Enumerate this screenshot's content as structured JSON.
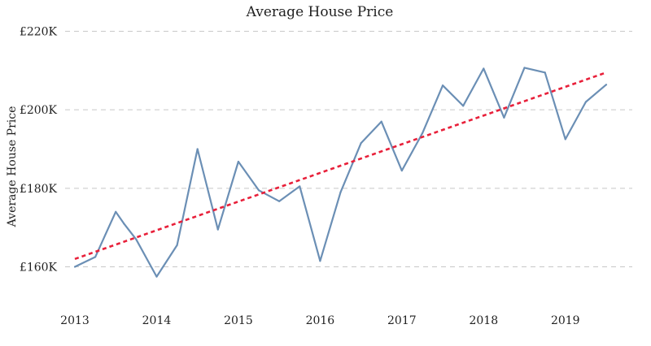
{
  "chart_data": {
    "type": "line",
    "title": "Average House Price",
    "xlabel": "",
    "ylabel": "Average House Price",
    "x_ticks": [
      {
        "value": 2013,
        "label": "2013"
      },
      {
        "value": 2014,
        "label": "2014"
      },
      {
        "value": 2015,
        "label": "2015"
      },
      {
        "value": 2016,
        "label": "2016"
      },
      {
        "value": 2017,
        "label": "2017"
      },
      {
        "value": 2018,
        "label": "2018"
      },
      {
        "value": 2019,
        "label": "2019"
      }
    ],
    "y_ticks": [
      {
        "value": 160000,
        "label": "£160K"
      },
      {
        "value": 180000,
        "label": "£180K"
      },
      {
        "value": 200000,
        "label": "£200K"
      },
      {
        "value": 220000,
        "label": "£220K"
      }
    ],
    "xlim": [
      2012.9,
      2019.6
    ],
    "ylim": [
      152000,
      221000
    ],
    "grid": "horizontal dashed",
    "colors": {
      "series": "#6b8fb5",
      "trend": "#e8203a",
      "grid": "#c8c8c8"
    },
    "series": [
      {
        "values": [
          [
            2013.0,
            160000
          ],
          [
            2013.25,
            162500
          ],
          [
            2013.5,
            174000
          ],
          [
            2013.6,
            171000
          ],
          [
            2013.75,
            167000
          ],
          [
            2014.0,
            157500
          ],
          [
            2014.25,
            165500
          ],
          [
            2014.5,
            190000
          ],
          [
            2014.75,
            169500
          ],
          [
            2015.0,
            186800
          ],
          [
            2015.25,
            179500
          ],
          [
            2015.5,
            176700
          ],
          [
            2015.75,
            180500
          ],
          [
            2016.0,
            161500
          ],
          [
            2016.25,
            179000
          ],
          [
            2016.5,
            191500
          ],
          [
            2016.75,
            197000
          ],
          [
            2017.0,
            184500
          ],
          [
            2017.25,
            194000
          ],
          [
            2017.5,
            206200
          ],
          [
            2017.75,
            201000
          ],
          [
            2018.0,
            210500
          ],
          [
            2018.25,
            198000
          ],
          [
            2018.5,
            210700
          ],
          [
            2018.75,
            209500
          ],
          [
            2019.0,
            192500
          ],
          [
            2019.25,
            202000
          ],
          [
            2019.5,
            206400
          ]
        ]
      }
    ],
    "trendline": {
      "values": [
        [
          2013.0,
          162000
        ],
        [
          2019.5,
          209500
        ]
      ]
    }
  }
}
